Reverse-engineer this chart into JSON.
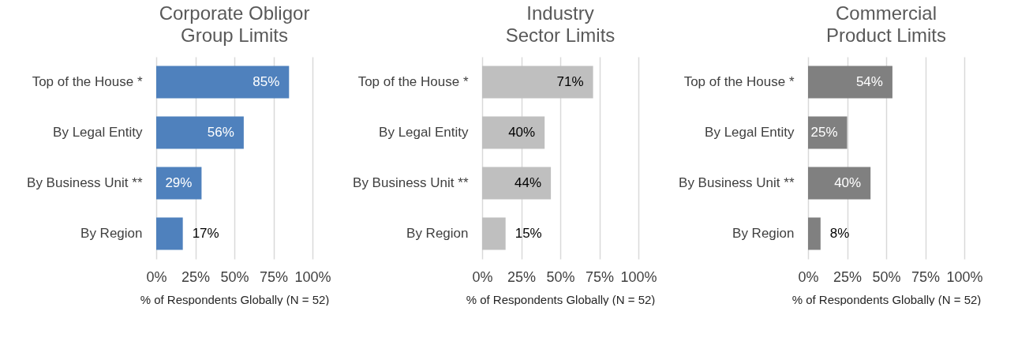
{
  "chart_data": [
    {
      "type": "bar",
      "orientation": "horizontal",
      "title": "Corporate Obligor Group Limits",
      "categories": [
        "Top of the House *",
        "By Legal Entity",
        "By Business Unit **",
        "By Region"
      ],
      "values": [
        85,
        56,
        29,
        17
      ],
      "value_labels": [
        "85%",
        "56%",
        "29%",
        "17%"
      ],
      "color": "#4f81bd",
      "xlim": [
        0,
        100
      ],
      "xticks": [
        {
          "value": 0,
          "label": "0%"
        },
        {
          "value": 25,
          "label": "25%"
        },
        {
          "value": 50,
          "label": "50%"
        },
        {
          "value": 75,
          "label": "75%"
        },
        {
          "value": 100,
          "label": "100%"
        }
      ],
      "xlabel": "% of Respondents Globally (N = 52)",
      "grid": "x"
    },
    {
      "type": "bar",
      "orientation": "horizontal",
      "title": "Industry Sector Limits",
      "categories": [
        "Top of the House *",
        "By Legal Entity",
        "By Business Unit **",
        "By Region"
      ],
      "values": [
        71,
        40,
        44,
        15
      ],
      "value_labels": [
        "71%",
        "40%",
        "44%",
        "15%"
      ],
      "color": "#bfbfbf",
      "xlim": [
        0,
        100
      ],
      "xticks": [
        {
          "value": 0,
          "label": "0%"
        },
        {
          "value": 25,
          "label": "25%"
        },
        {
          "value": 50,
          "label": "50%"
        },
        {
          "value": 75,
          "label": "75%"
        },
        {
          "value": 100,
          "label": "100%"
        }
      ],
      "xlabel": "% of Respondents Globally (N = 52)",
      "grid": "x"
    },
    {
      "type": "bar",
      "orientation": "horizontal",
      "title": "Commercial Product Limits",
      "categories": [
        "Top of the House *",
        "By Legal Entity",
        "By Business Unit **",
        "By Region"
      ],
      "values": [
        54,
        25,
        40,
        8
      ],
      "value_labels": [
        "54%",
        "25%",
        "40%",
        "8%"
      ],
      "color": "#808080",
      "xlim": [
        0,
        100
      ],
      "xticks": [
        {
          "value": 0,
          "label": "0%"
        },
        {
          "value": 25,
          "label": "25%"
        },
        {
          "value": 50,
          "label": "50%"
        },
        {
          "value": 75,
          "label": "75%"
        },
        {
          "value": 100,
          "label": "100%"
        }
      ],
      "xlabel": "% of Respondents Globally (N = 52)",
      "grid": "x"
    }
  ]
}
